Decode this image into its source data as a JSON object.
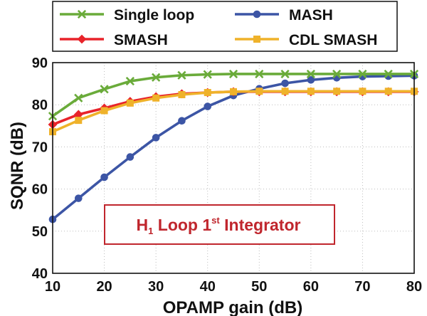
{
  "chart_data": {
    "type": "line",
    "title": "",
    "xlabel": "OPAMP gain (dB)",
    "ylabel": "SQNR (dB)",
    "xlim": [
      10,
      80
    ],
    "ylim": [
      40,
      90
    ],
    "xticks": [
      10,
      20,
      30,
      40,
      50,
      60,
      70,
      80
    ],
    "yticks": [
      40,
      50,
      60,
      70,
      80,
      90
    ],
    "grid": true,
    "legend_position": "top",
    "x": [
      10,
      15,
      20,
      25,
      30,
      35,
      40,
      45,
      50,
      55,
      60,
      65,
      70,
      75,
      80
    ],
    "series": [
      {
        "name": "Single loop",
        "color": "#6aab3a",
        "marker": "x",
        "values": [
          77.3,
          81.6,
          83.7,
          85.6,
          86.5,
          87.0,
          87.2,
          87.3,
          87.3,
          87.3,
          87.3,
          87.3,
          87.3,
          87.3,
          87.3
        ]
      },
      {
        "name": "MASH",
        "color": "#3c55a5",
        "marker": "circle",
        "values": [
          52.8,
          57.8,
          62.8,
          67.6,
          72.2,
          76.2,
          79.6,
          82.2,
          83.8,
          85.1,
          85.9,
          86.4,
          86.7,
          86.8,
          86.9
        ]
      },
      {
        "name": "SMASH",
        "color": "#e8232a",
        "marker": "diamond",
        "values": [
          75.3,
          77.7,
          79.2,
          80.8,
          81.9,
          82.6,
          82.9,
          83.1,
          83.1,
          83.1,
          83.1,
          83.1,
          83.1,
          83.1,
          83.1
        ]
      },
      {
        "name": "CDL SMASH",
        "color": "#efb22a",
        "marker": "square",
        "values": [
          73.6,
          76.3,
          78.6,
          80.4,
          81.6,
          82.4,
          82.9,
          83.1,
          83.2,
          83.2,
          83.2,
          83.2,
          83.2,
          83.2,
          83.2
        ]
      }
    ],
    "annotation": {
      "main": "H",
      "sub": "1",
      "middle": " Loop 1",
      "sup": "st",
      "tail": " Integrator"
    }
  }
}
